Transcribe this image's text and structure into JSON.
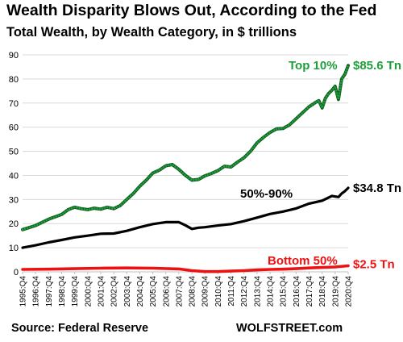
{
  "chart_data": {
    "type": "line",
    "title": "Wealth Disparity Blows Out, According to the Fed",
    "subtitle": "Total Wealth, by Wealth Category, in $ trillions",
    "xlabel": "",
    "ylabel": "",
    "ylim": [
      0,
      90
    ],
    "yticks": [
      0,
      10,
      20,
      30,
      40,
      50,
      60,
      70,
      80,
      90
    ],
    "grid": "horizontal",
    "legend": "none",
    "x_tick_labels": [
      "1995:Q4",
      "1996:Q4",
      "1997:Q4",
      "1998:Q4",
      "1999:Q4",
      "2000:Q4",
      "2001:Q4",
      "2002:Q4",
      "2003:Q4",
      "2004:Q4",
      "2005:Q4",
      "2006:Q4",
      "2007:Q4",
      "2008:Q4",
      "2009:Q4",
      "2010:Q4",
      "2011:Q4",
      "2012:Q4",
      "2013:Q4",
      "2014:Q4",
      "2015:Q4",
      "2016:Q4",
      "2017:Q4",
      "2018:Q4",
      "2019:Q4",
      "2020:Q4"
    ],
    "series": [
      {
        "name": "Top 10%",
        "end_label": "$85.6 Tn",
        "color": "#1f9e3a",
        "dots": true,
        "values": [
          [
            1995.75,
            17.5
          ],
          [
            1996.75,
            19.2
          ],
          [
            1997.75,
            21.8
          ],
          [
            1998.75,
            23.8
          ],
          [
            1999.25,
            25.8
          ],
          [
            1999.75,
            26.8
          ],
          [
            2000.25,
            26.2
          ],
          [
            2000.75,
            25.8
          ],
          [
            2001.25,
            26.4
          ],
          [
            2001.75,
            26.0
          ],
          [
            2002.25,
            26.8
          ],
          [
            2002.75,
            26.2
          ],
          [
            2003.25,
            27.5
          ],
          [
            2003.75,
            30.0
          ],
          [
            2004.25,
            32.5
          ],
          [
            2004.75,
            35.5
          ],
          [
            2005.25,
            38.0
          ],
          [
            2005.75,
            41.0
          ],
          [
            2006.25,
            42.2
          ],
          [
            2006.75,
            44.0
          ],
          [
            2007.25,
            44.5
          ],
          [
            2007.75,
            42.5
          ],
          [
            2008.25,
            40.0
          ],
          [
            2008.75,
            38.0
          ],
          [
            2009.25,
            38.3
          ],
          [
            2009.75,
            39.8
          ],
          [
            2010.25,
            40.8
          ],
          [
            2010.75,
            42.0
          ],
          [
            2011.25,
            43.8
          ],
          [
            2011.75,
            43.5
          ],
          [
            2012.25,
            45.5
          ],
          [
            2012.75,
            47.3
          ],
          [
            2013.25,
            50.0
          ],
          [
            2013.75,
            53.5
          ],
          [
            2014.25,
            55.8
          ],
          [
            2014.75,
            57.8
          ],
          [
            2015.25,
            59.3
          ],
          [
            2015.75,
            59.5
          ],
          [
            2016.25,
            61.0
          ],
          [
            2016.75,
            63.5
          ],
          [
            2017.25,
            66.0
          ],
          [
            2017.75,
            68.5
          ],
          [
            2018.25,
            70.3
          ],
          [
            2018.5,
            71.0
          ],
          [
            2018.75,
            68.0
          ],
          [
            2019.0,
            72.0
          ],
          [
            2019.25,
            74.0
          ],
          [
            2019.5,
            75.3
          ],
          [
            2019.75,
            77.0
          ],
          [
            2020.0,
            71.5
          ],
          [
            2020.25,
            80.0
          ],
          [
            2020.5,
            82.0
          ],
          [
            2020.75,
            85.6
          ]
        ]
      },
      {
        "name": "50%-90%",
        "end_label": "$34.8 Tn",
        "color": "#000000",
        "dots": false,
        "values": [
          [
            1995.75,
            10.0
          ],
          [
            1996.75,
            11.0
          ],
          [
            1997.75,
            12.2
          ],
          [
            1998.75,
            13.2
          ],
          [
            1999.75,
            14.3
          ],
          [
            2000.75,
            15.0
          ],
          [
            2001.75,
            15.8
          ],
          [
            2002.75,
            15.9
          ],
          [
            2003.75,
            17.0
          ],
          [
            2004.75,
            18.5
          ],
          [
            2005.75,
            19.8
          ],
          [
            2006.75,
            20.6
          ],
          [
            2007.75,
            20.6
          ],
          [
            2008.25,
            19.3
          ],
          [
            2008.75,
            17.8
          ],
          [
            2009.25,
            18.3
          ],
          [
            2009.75,
            18.5
          ],
          [
            2010.75,
            19.2
          ],
          [
            2011.75,
            19.8
          ],
          [
            2012.75,
            21.0
          ],
          [
            2013.75,
            22.5
          ],
          [
            2014.75,
            24.0
          ],
          [
            2015.75,
            25.0
          ],
          [
            2016.75,
            26.3
          ],
          [
            2017.75,
            28.3
          ],
          [
            2018.75,
            29.5
          ],
          [
            2019.5,
            31.5
          ],
          [
            2020.0,
            31.0
          ],
          [
            2020.25,
            32.5
          ],
          [
            2020.5,
            33.5
          ],
          [
            2020.75,
            34.8
          ]
        ]
      },
      {
        "name": "Bottom 50%",
        "end_label": "$2.5 Tn",
        "color": "#ee1111",
        "dots": false,
        "values": [
          [
            1995.75,
            1.0
          ],
          [
            1997.75,
            1.1
          ],
          [
            1999.75,
            1.3
          ],
          [
            2001.75,
            1.5
          ],
          [
            2003.75,
            1.6
          ],
          [
            2005.75,
            1.5
          ],
          [
            2007.75,
            1.2
          ],
          [
            2008.75,
            0.5
          ],
          [
            2009.75,
            0.1
          ],
          [
            2010.75,
            0.1
          ],
          [
            2011.75,
            0.3
          ],
          [
            2012.75,
            0.5
          ],
          [
            2013.75,
            0.8
          ],
          [
            2014.75,
            1.0
          ],
          [
            2015.75,
            1.1
          ],
          [
            2016.75,
            1.3
          ],
          [
            2017.75,
            1.6
          ],
          [
            2018.75,
            1.8
          ],
          [
            2019.75,
            2.0
          ],
          [
            2020.75,
            2.5
          ]
        ]
      }
    ]
  },
  "footer": {
    "source": "Source: Federal Reserve",
    "brand": "WOLFSTREET.com"
  }
}
